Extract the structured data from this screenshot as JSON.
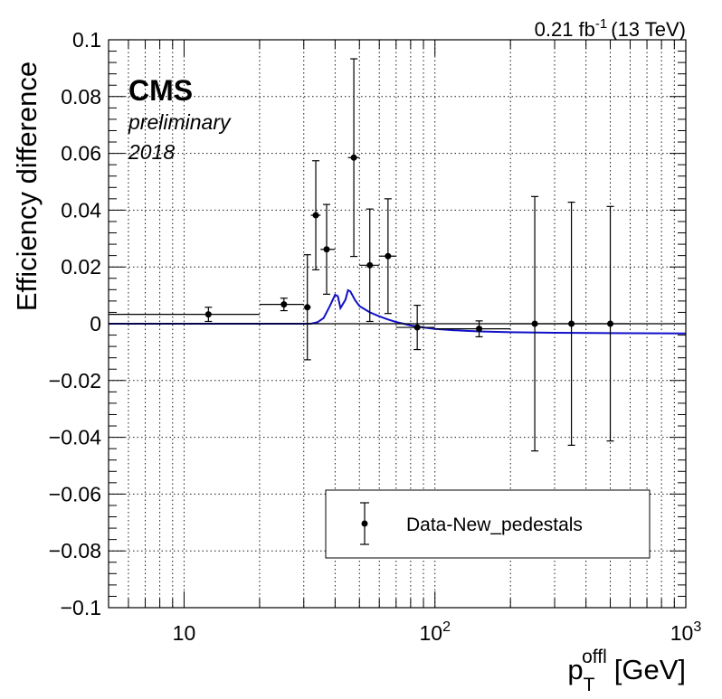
{
  "chart_data": {
    "type": "scatter",
    "lumi_label": "0.21 fb",
    "lumi_superscript": "-1",
    "energy_label": "(13 TeV)",
    "experiment": "CMS",
    "status": "preliminary",
    "year": "2018",
    "ylabel": "Efficiency difference",
    "xlabel_main": "p",
    "xlabel_sub": "T",
    "xlabel_sup": "offl",
    "xlabel_unit": "[GeV]",
    "x_scale": "log",
    "xlim": [
      5,
      1000
    ],
    "ylim": [
      -0.1,
      0.1
    ],
    "grid": true,
    "legend_position": "bottom-right",
    "x_tick_labels": [
      "10",
      "10",
      "10"
    ],
    "x_tick_sups": [
      "",
      "2",
      "3"
    ],
    "x_tick_values": [
      10,
      100,
      1000
    ],
    "y_ticks": [
      -0.1,
      -0.08,
      -0.06,
      -0.04,
      -0.02,
      0,
      0.02,
      0.04,
      0.06,
      0.08,
      0.1
    ],
    "y_tick_labels": [
      "−0.1",
      "−0.08",
      "−0.06",
      "−0.04",
      "−0.02",
      "0",
      "0.02",
      "0.04",
      "0.06",
      "0.08",
      "0.1"
    ],
    "series": [
      {
        "name": "Data-New_pedestals",
        "color": "#000000",
        "points": [
          {
            "x": 12.5,
            "y": 0.0033,
            "xlo": 5,
            "xhi": 20,
            "yerr": 0.0025
          },
          {
            "x": 25,
            "y": 0.0068,
            "xlo": 20,
            "xhi": 30,
            "yerr": 0.0022
          },
          {
            "x": 31,
            "y": 0.0058,
            "xlo": 30,
            "xhi": 32,
            "yerr": 0.0185
          },
          {
            "x": 33.5,
            "y": 0.0382,
            "xlo": 32,
            "xhi": 35,
            "yerr": 0.0192
          },
          {
            "x": 37,
            "y": 0.0262,
            "xlo": 35,
            "xhi": 40,
            "yerr": 0.0158
          },
          {
            "x": 47.5,
            "y": 0.0585,
            "xlo": 45,
            "xhi": 50,
            "yerr": 0.0348
          },
          {
            "x": 55,
            "y": 0.0206,
            "xlo": 50,
            "xhi": 60,
            "yerr": 0.0198
          },
          {
            "x": 65,
            "y": 0.0238,
            "xlo": 60,
            "xhi": 70,
            "yerr": 0.0202
          },
          {
            "x": 85,
            "y": -0.0013,
            "xlo": 70,
            "xhi": 100,
            "yerr": 0.0078
          },
          {
            "x": 150,
            "y": -0.0018,
            "xlo": 100,
            "xhi": 200,
            "yerr": 0.0028
          },
          {
            "x": 250,
            "y": 0.0,
            "xlo": 200,
            "xhi": 300,
            "yerr": 0.0448
          },
          {
            "x": 350,
            "y": 0.0,
            "xlo": 300,
            "xhi": 400,
            "yerr": 0.0428
          },
          {
            "x": 500,
            "y": 0.0,
            "xlo": 400,
            "xhi": 600,
            "yerr": 0.0413
          }
        ]
      }
    ],
    "fit_curve": {
      "color": "#1010c8",
      "x": [
        5,
        32,
        34,
        36,
        38,
        40,
        41,
        42,
        44,
        45,
        46,
        48,
        50,
        55,
        60,
        65,
        70,
        75,
        80,
        90,
        100,
        120,
        150,
        200,
        300,
        500,
        1000
      ],
      "y": [
        0,
        0,
        0.0005,
        0.002,
        0.006,
        0.0102,
        0.0097,
        0.0055,
        0.0085,
        0.0118,
        0.0114,
        0.0083,
        0.0062,
        0.004,
        0.0026,
        0.0015,
        0.0006,
        0,
        -0.0006,
        -0.0013,
        -0.0018,
        -0.0023,
        -0.0027,
        -0.003,
        -0.0032,
        -0.0033,
        -0.0034
      ]
    }
  }
}
